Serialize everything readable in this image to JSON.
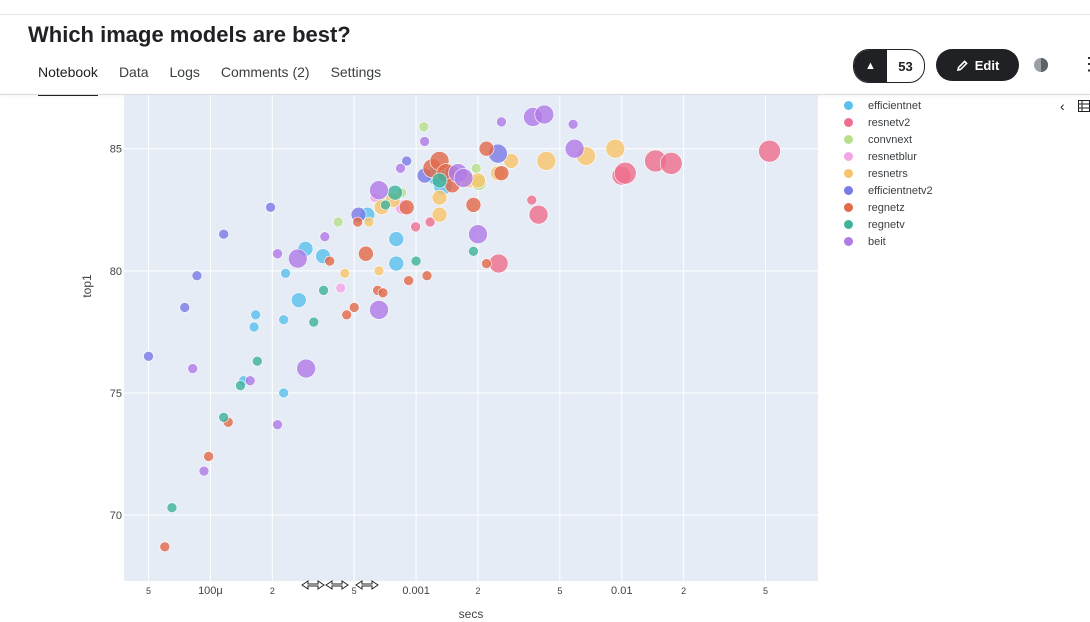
{
  "page": {
    "title": "Which image models are best?",
    "tabs": [
      {
        "label": "Notebook",
        "active": true
      },
      {
        "label": "Data"
      },
      {
        "label": "Logs"
      },
      {
        "label": "Comments (2)"
      },
      {
        "label": "Settings"
      }
    ],
    "vote_count": "53",
    "edit_label": "Edit",
    "icons": [
      "caret-up-icon",
      "pencil-icon",
      "theme-toggle-icon",
      "more-vert-icon",
      "chevron-left-icon",
      "table-icon"
    ]
  },
  "chart_data": {
    "type": "scatter",
    "title": "",
    "xlabel": "secs",
    "ylabel": "top1",
    "x_scale": "log",
    "xlim": [
      3.8e-05,
      0.09
    ],
    "ylim": [
      67.3,
      87.2
    ],
    "grid": true,
    "legend_placement": "right",
    "x_ticks": [
      {
        "v": 5e-05,
        "label": "5"
      },
      {
        "v": 0.0001,
        "label": "100μ"
      },
      {
        "v": 0.0002,
        "label": "2"
      },
      {
        "v": 0.0005,
        "label": "5"
      },
      {
        "v": 0.001,
        "label": "0.001"
      },
      {
        "v": 0.002,
        "label": "2"
      },
      {
        "v": 0.005,
        "label": "5"
      },
      {
        "v": 0.01,
        "label": "0.01"
      },
      {
        "v": 0.02,
        "label": "2"
      },
      {
        "v": 0.05,
        "label": "5"
      }
    ],
    "y_ticks": [
      70,
      75,
      80,
      85
    ],
    "series": [
      {
        "name": "efficientnet",
        "color": "#5bc0eb",
        "points": [
          [
            0.000163,
            77.7,
            1
          ],
          [
            0.000166,
            78.2,
            1
          ],
          [
            0.000145,
            75.5,
            1
          ],
          [
            0.000227,
            78.0,
            1
          ],
          [
            0.000227,
            75.0,
            1
          ],
          [
            0.000232,
            79.9,
            1
          ],
          [
            0.000269,
            78.8,
            2
          ],
          [
            0.00029,
            80.9,
            2
          ],
          [
            0.000353,
            80.6,
            2
          ],
          [
            0.000579,
            82.3,
            2
          ],
          [
            0.000801,
            81.3,
            2
          ],
          [
            0.000801,
            80.3,
            2
          ],
          [
            0.00135,
            83.5,
            3
          ],
          [
            0.00125,
            83.9,
            3
          ]
        ]
      },
      {
        "name": "resnetv2",
        "color": "#ee6f8d",
        "points": [
          [
            0.000995,
            81.8,
            1
          ],
          [
            0.00117,
            82.0,
            1
          ],
          [
            0.00365,
            82.9,
            1
          ],
          [
            0.00394,
            82.3,
            3
          ],
          [
            0.00252,
            80.3,
            3
          ],
          [
            0.00998,
            83.9,
            3
          ],
          [
            0.0104,
            84.0,
            4
          ],
          [
            0.0146,
            84.5,
            4
          ],
          [
            0.0174,
            84.4,
            4
          ],
          [
            0.0523,
            84.9,
            4
          ]
        ]
      },
      {
        "name": "convnext",
        "color": "#b8df8a",
        "points": [
          [
            0.000418,
            82.0,
            1
          ],
          [
            0.00068,
            82.8,
            1
          ],
          [
            0.00085,
            83.2,
            1
          ],
          [
            0.00109,
            85.9,
            1
          ],
          [
            0.00196,
            84.2,
            1
          ],
          [
            0.00202,
            83.6,
            2
          ]
        ]
      },
      {
        "name": "resnetblur",
        "color": "#f2a6e6",
        "points": [
          [
            0.00043,
            79.3,
            1
          ],
          [
            0.00063,
            83.0,
            1
          ],
          [
            0.00086,
            82.6,
            2
          ]
        ]
      },
      {
        "name": "resnetrs",
        "color": "#f6c46b",
        "points": [
          [
            0.00045,
            79.9,
            1
          ],
          [
            0.00059,
            82.0,
            1
          ],
          [
            0.00066,
            80.0,
            1
          ],
          [
            0.00068,
            82.6,
            2
          ],
          [
            0.00077,
            82.9,
            2
          ],
          [
            0.0013,
            82.3,
            2
          ],
          [
            0.0013,
            83.0,
            2
          ],
          [
            0.0018,
            83.7,
            2
          ],
          [
            0.002,
            83.7,
            2
          ],
          [
            0.0025,
            84.0,
            2
          ],
          [
            0.0029,
            84.5,
            2
          ],
          [
            0.0043,
            84.5,
            3
          ],
          [
            0.0067,
            84.7,
            3
          ],
          [
            0.0093,
            85.0,
            3
          ]
        ]
      },
      {
        "name": "efficientnetv2",
        "color": "#7b7be6",
        "points": [
          [
            5e-05,
            76.5,
            1
          ],
          [
            7.5e-05,
            78.5,
            1
          ],
          [
            8.6e-05,
            79.8,
            1
          ],
          [
            0.000116,
            81.5,
            1
          ],
          [
            0.000196,
            82.6,
            1
          ],
          [
            0.000525,
            82.3,
            2
          ],
          [
            0.0009,
            84.5,
            1
          ],
          [
            0.0011,
            83.9,
            2
          ],
          [
            0.0015,
            84.0,
            2
          ],
          [
            0.0025,
            84.8,
            3
          ]
        ]
      },
      {
        "name": "regnetz",
        "color": "#e06a4a",
        "points": [
          [
            6e-05,
            68.7,
            1
          ],
          [
            9.8e-05,
            72.4,
            1
          ],
          [
            0.000122,
            73.8,
            1
          ],
          [
            0.00052,
            82.0,
            1
          ],
          [
            0.00038,
            80.4,
            1
          ],
          [
            0.00046,
            78.2,
            1
          ],
          [
            0.0005,
            78.5,
            1
          ],
          [
            0.00057,
            80.7,
            2
          ],
          [
            0.00065,
            79.2,
            1
          ],
          [
            0.00069,
            79.1,
            1
          ],
          [
            0.00092,
            79.6,
            1
          ],
          [
            0.00113,
            79.8,
            1
          ],
          [
            0.0019,
            82.7,
            2
          ],
          [
            0.0022,
            80.3,
            1
          ],
          [
            0.0022,
            85.0,
            2
          ],
          [
            0.0026,
            84.0,
            2
          ],
          [
            0.0009,
            82.6,
            2
          ],
          [
            0.0012,
            84.2,
            3
          ],
          [
            0.0013,
            84.5,
            3
          ],
          [
            0.0014,
            84.0,
            3
          ],
          [
            0.0015,
            83.5,
            2
          ]
        ]
      },
      {
        "name": "regnetv",
        "color": "#3fb39a",
        "points": [
          [
            6.5e-05,
            70.3,
            1
          ],
          [
            0.000116,
            74.0,
            1
          ],
          [
            0.00014,
            75.3,
            1
          ],
          [
            0.000169,
            76.3,
            1
          ],
          [
            0.000318,
            77.9,
            1
          ],
          [
            0.000355,
            79.2,
            1
          ],
          [
            0.00071,
            82.7,
            1
          ],
          [
            0.00079,
            83.2,
            2
          ],
          [
            0.001,
            80.4,
            1
          ],
          [
            0.0019,
            80.8,
            1
          ],
          [
            0.0013,
            83.7,
            2
          ]
        ]
      },
      {
        "name": "beit",
        "color": "#b07be6",
        "points": [
          [
            8.2e-05,
            76.0,
            1
          ],
          [
            9.3e-05,
            71.8,
            1
          ],
          [
            0.000156,
            75.5,
            1
          ],
          [
            0.000212,
            80.7,
            1
          ],
          [
            0.000212,
            73.7,
            1
          ],
          [
            0.000266,
            80.5,
            3
          ],
          [
            0.000292,
            76.0,
            3
          ],
          [
            0.00036,
            81.4,
            1
          ],
          [
            0.00066,
            83.3,
            3
          ],
          [
            0.00066,
            78.4,
            3
          ],
          [
            0.00084,
            84.2,
            1
          ],
          [
            0.0011,
            85.3,
            1
          ],
          [
            0.0016,
            84.0,
            3
          ],
          [
            0.0017,
            83.8,
            3
          ],
          [
            0.002,
            81.5,
            3
          ],
          [
            0.0026,
            86.1,
            1
          ],
          [
            0.0037,
            86.3,
            3
          ],
          [
            0.0042,
            86.4,
            3
          ],
          [
            0.0058,
            86.0,
            1
          ],
          [
            0.0059,
            85.0,
            3
          ]
        ]
      }
    ]
  }
}
